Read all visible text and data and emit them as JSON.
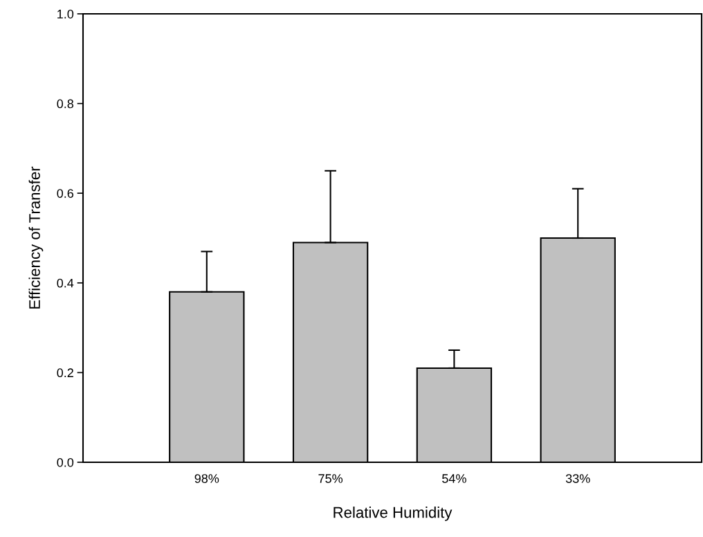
{
  "chart_data": {
    "type": "bar",
    "xlabel": "Relative Humidity",
    "ylabel": "Efficiency of Transfer",
    "categories": [
      "98%",
      "75%",
      "54%",
      "33%"
    ],
    "values": [
      0.38,
      0.49,
      0.21,
      0.5
    ],
    "errors": [
      [
        0.38,
        0.47
      ],
      [
        0.49,
        0.65
      ],
      [
        0.21,
        0.25
      ],
      [
        0.5,
        0.61
      ]
    ],
    "color": "#c0c0c0",
    "ylim": [
      0,
      1.0
    ],
    "yticks": [
      {
        "value": 0,
        "label": "0.0"
      },
      0.2,
      0.4,
      0.6,
      0.8,
      {
        "value": 1.0,
        "label": "1.0"
      }
    ],
    "grid": false
  }
}
